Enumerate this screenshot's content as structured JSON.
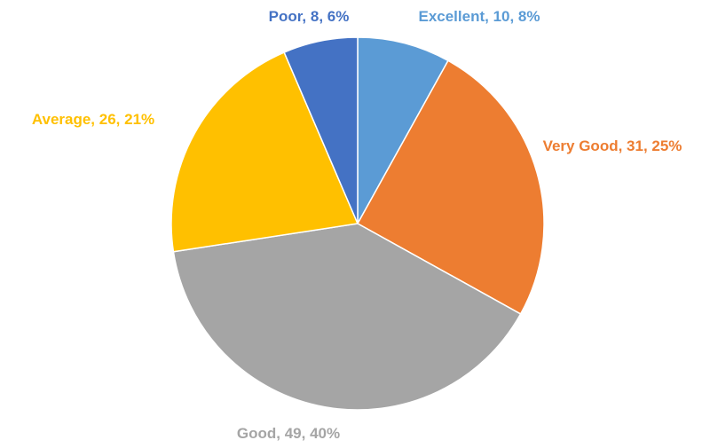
{
  "chart_data": {
    "type": "pie",
    "categories": [
      "Excellent",
      "Very Good",
      "Good",
      "Average",
      "Poor"
    ],
    "values": [
      10,
      31,
      49,
      26,
      8
    ],
    "value_labels": [
      "Excellent, 10, 8%",
      "Very Good, 31, 25%",
      "Good, 49, 40%",
      "Average, 26, 21%",
      "Poor, 8, 6%"
    ],
    "colors": [
      "#5b9bd5",
      "#ed7d31",
      "#a5a5a5",
      "#ffc000",
      "#4472c4"
    ]
  }
}
